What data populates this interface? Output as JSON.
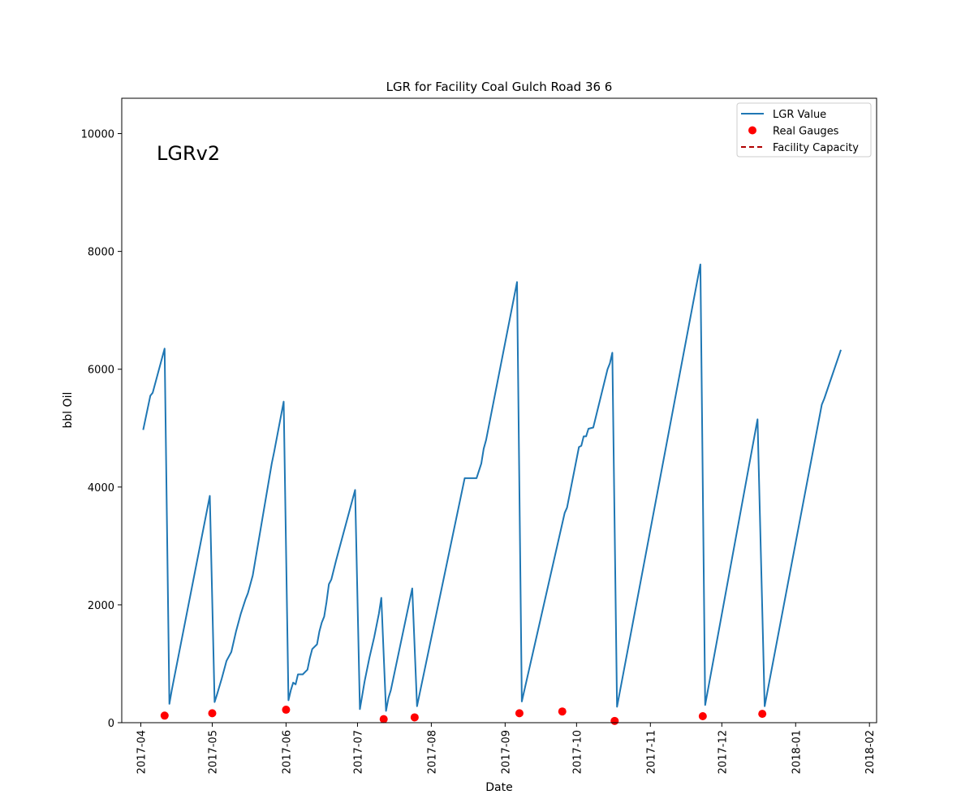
{
  "chart_data": {
    "type": "line",
    "title": "LGR for Facility Coal Gulch Road 36 6",
    "xlabel": "Date",
    "ylabel": "bbl Oil",
    "annotation": "LGRv2",
    "xlim": [
      "2017-03-24",
      "2018-02-04"
    ],
    "ylim": [
      0,
      10600
    ],
    "x_ticks": [
      "2017-04",
      "2017-05",
      "2017-06",
      "2017-07",
      "2017-08",
      "2017-09",
      "2017-10",
      "2017-11",
      "2017-12",
      "2018-01",
      "2018-02"
    ],
    "y_ticks": [
      "0",
      "2000",
      "4000",
      "6000",
      "8000",
      "10000"
    ],
    "legend_position": "upper right",
    "grid": false,
    "series": [
      {
        "name": "LGR Value",
        "kind": "line",
        "color": "#1f77b4",
        "points": [
          [
            "2017-04-02",
            4970
          ],
          [
            "2017-04-05",
            5550
          ],
          [
            "2017-04-06",
            5600
          ],
          [
            "2017-04-11",
            6350
          ],
          [
            "2017-04-13",
            320
          ],
          [
            "2017-04-14",
            550
          ],
          [
            "2017-04-30",
            3850
          ],
          [
            "2017-05-02",
            350
          ],
          [
            "2017-05-03",
            480
          ],
          [
            "2017-05-05",
            750
          ],
          [
            "2017-05-07",
            1050
          ],
          [
            "2017-05-09",
            1200
          ],
          [
            "2017-05-11",
            1550
          ],
          [
            "2017-05-13",
            1850
          ],
          [
            "2017-05-15",
            2100
          ],
          [
            "2017-05-16",
            2200
          ],
          [
            "2017-05-18",
            2500
          ],
          [
            "2017-05-26",
            4400
          ],
          [
            "2017-05-27",
            4600
          ],
          [
            "2017-05-31",
            5450
          ],
          [
            "2017-06-02",
            380
          ],
          [
            "2017-06-03",
            550
          ],
          [
            "2017-06-04",
            680
          ],
          [
            "2017-06-05",
            650
          ],
          [
            "2017-06-06",
            820
          ],
          [
            "2017-06-08",
            820
          ],
          [
            "2017-06-10",
            900
          ],
          [
            "2017-06-11",
            1100
          ],
          [
            "2017-06-12",
            1250
          ],
          [
            "2017-06-14",
            1330
          ],
          [
            "2017-06-15",
            1550
          ],
          [
            "2017-06-16",
            1700
          ],
          [
            "2017-06-17",
            1800
          ],
          [
            "2017-06-18",
            2050
          ],
          [
            "2017-06-19",
            2350
          ],
          [
            "2017-06-20",
            2430
          ],
          [
            "2017-06-22",
            2750
          ],
          [
            "2017-06-30",
            3950
          ],
          [
            "2017-07-02",
            230
          ],
          [
            "2017-07-04",
            700
          ],
          [
            "2017-07-06",
            1100
          ],
          [
            "2017-07-08",
            1450
          ],
          [
            "2017-07-10",
            1850
          ],
          [
            "2017-07-11",
            2120
          ],
          [
            "2017-07-13",
            200
          ],
          [
            "2017-07-14",
            420
          ],
          [
            "2017-07-15",
            550
          ],
          [
            "2017-07-24",
            2280
          ],
          [
            "2017-07-26",
            280
          ],
          [
            "2017-08-15",
            4150
          ],
          [
            "2017-08-20",
            4150
          ],
          [
            "2017-08-22",
            4400
          ],
          [
            "2017-08-23",
            4650
          ],
          [
            "2017-08-24",
            4800
          ],
          [
            "2017-09-06",
            7480
          ],
          [
            "2017-09-08",
            360
          ],
          [
            "2017-09-26",
            3560
          ],
          [
            "2017-09-27",
            3650
          ],
          [
            "2017-10-02",
            4680
          ],
          [
            "2017-10-03",
            4700
          ],
          [
            "2017-10-04",
            4860
          ],
          [
            "2017-10-05",
            4860
          ],
          [
            "2017-10-06",
            4990
          ],
          [
            "2017-10-08",
            5010
          ],
          [
            "2017-10-14",
            6000
          ],
          [
            "2017-10-15",
            6100
          ],
          [
            "2017-10-16",
            6280
          ],
          [
            "2017-10-18",
            270
          ],
          [
            "2017-11-22",
            7780
          ],
          [
            "2017-11-24",
            300
          ],
          [
            "2017-12-16",
            5150
          ],
          [
            "2017-12-19",
            280
          ],
          [
            "2018-01-12",
            5400
          ],
          [
            "2018-01-13",
            5500
          ],
          [
            "2018-01-20",
            6330
          ]
        ]
      },
      {
        "name": "Real Gauges",
        "kind": "scatter",
        "color": "#ff0000",
        "points": [
          [
            "2017-04-11",
            120
          ],
          [
            "2017-05-01",
            160
          ],
          [
            "2017-06-01",
            220
          ],
          [
            "2017-07-12",
            60
          ],
          [
            "2017-07-25",
            90
          ],
          [
            "2017-09-07",
            160
          ],
          [
            "2017-09-25",
            190
          ],
          [
            "2017-10-17",
            30
          ],
          [
            "2017-11-23",
            110
          ],
          [
            "2017-12-18",
            150
          ]
        ]
      },
      {
        "name": "Facility Capacity",
        "kind": "dashed-line",
        "color": "#b00000",
        "points": []
      }
    ]
  }
}
